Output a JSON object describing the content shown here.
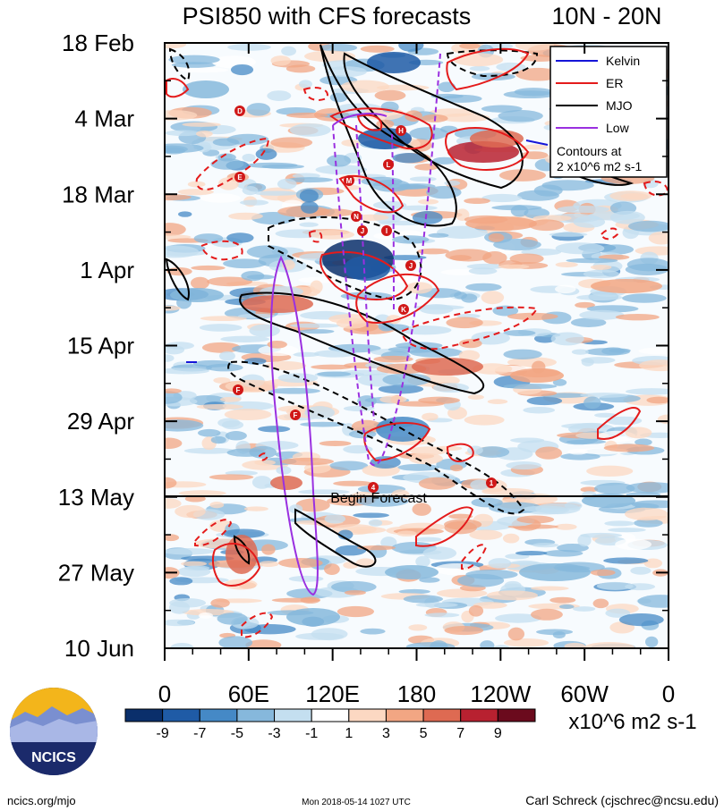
{
  "chart_data": {
    "type": "heatmap",
    "title": "PSI850 with CFS forecasts",
    "region": "10N - 20N",
    "y_ticks": [
      "18 Feb",
      "4 Mar",
      "18 Mar",
      "1 Apr",
      "15 Apr",
      "29 Apr",
      "13 May",
      "27 May",
      "10 Jun"
    ],
    "x_ticks": [
      "0",
      "60E",
      "120E",
      "180",
      "120W",
      "60W",
      "0"
    ],
    "forecast_label": "Begin Forecast",
    "forecast_row_index": 6,
    "colorbar": {
      "ticks": [
        "-9",
        "-7",
        "-5",
        "-3",
        "-1",
        "1",
        "3",
        "5",
        "7",
        "9"
      ],
      "colors": [
        "#0a2f6b",
        "#1f5ba6",
        "#4589c6",
        "#86b8dc",
        "#c4dff0",
        "#ffffff",
        "#fcd8c2",
        "#f2a683",
        "#de6a52",
        "#b82130",
        "#6b0a1d"
      ],
      "unit": "x10^6 m2 s-1"
    },
    "legend": {
      "items": [
        {
          "label": "Kelvin",
          "color": "#1515d8"
        },
        {
          "label": "ER",
          "color": "#e41b1b"
        },
        {
          "label": "MJO",
          "color": "#000000"
        },
        {
          "label": "Low",
          "color": "#9a30e0"
        }
      ],
      "note_line1": "Contours at",
      "note_line2": "2 x10^6 m2 s-1"
    },
    "storm_markers": [
      "D",
      "E",
      "H",
      "L",
      "M",
      "N",
      "J",
      "I",
      "J",
      "K",
      "F",
      "F",
      "4",
      "1"
    ]
  },
  "footer": {
    "site": "ncics.org/mjo",
    "timestamp": "Mon 2018-05-14 1027 UTC",
    "author": "Carl Schreck (cjschrec@ncsu.edu)"
  },
  "logo": {
    "text": "NCICS"
  }
}
